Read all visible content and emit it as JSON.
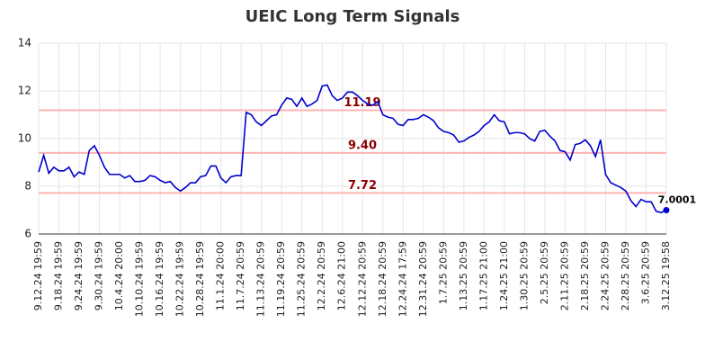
{
  "chart_data": {
    "type": "line",
    "title": "UEIC Long Term Signals",
    "categories": [
      "9.12.24 19:59",
      null,
      null,
      null,
      "9.18.24 19:59",
      null,
      null,
      null,
      "9.24.24 19:59",
      null,
      null,
      null,
      "9.30.24 19:59",
      null,
      null,
      null,
      "10.4.24 20:00",
      null,
      null,
      null,
      "10.10.24 19:59",
      null,
      null,
      null,
      "10.16.24 19:59",
      null,
      null,
      null,
      "10.22.24 19:59",
      null,
      null,
      null,
      "10.28.24 19:59",
      null,
      null,
      null,
      "11.1.24 20:00",
      null,
      null,
      null,
      "11.7.24 20:59",
      null,
      null,
      null,
      "11.13.24 20:59",
      null,
      null,
      null,
      "11.19.24 20:59",
      null,
      null,
      null,
      "11.25.24 20:59",
      null,
      null,
      null,
      "12.2.24 20:59",
      null,
      null,
      null,
      "12.6.24 21:00",
      null,
      null,
      null,
      "12.12.24 20:59",
      null,
      null,
      null,
      "12.18.24 20:59",
      null,
      null,
      null,
      "12.24.24 17:59",
      null,
      null,
      null,
      "12.31.24 20:59",
      null,
      null,
      null,
      "1.7.25 20:59",
      null,
      null,
      null,
      "1.13.25 20:59",
      null,
      null,
      null,
      "1.17.25 21:00",
      null,
      null,
      null,
      "1.24.25 21:00",
      null,
      null,
      null,
      "1.30.25 20:59",
      null,
      null,
      null,
      "2.5.25 20:59",
      null,
      null,
      null,
      "2.11.25 20:59",
      null,
      null,
      null,
      "2.18.25 20:59",
      null,
      null,
      null,
      "2.24.25 20:59",
      null,
      null,
      null,
      "2.28.25 20:59",
      null,
      null,
      null,
      "3.6.25 20:59",
      null,
      null,
      null,
      "3.12.25 19:58"
    ],
    "series": [
      {
        "color": "#0000cc",
        "values": [
          8.6,
          9.3,
          8.55,
          8.8,
          8.65,
          8.65,
          8.8,
          8.4,
          8.6,
          8.5,
          9.5,
          9.7,
          9.3,
          8.8,
          8.5,
          8.5,
          8.5,
          8.35,
          8.45,
          8.2,
          8.2,
          8.25,
          8.45,
          8.4,
          8.25,
          8.15,
          8.2,
          7.95,
          7.8,
          7.95,
          8.15,
          8.15,
          8.4,
          8.45,
          8.85,
          8.85,
          8.35,
          8.15,
          8.4,
          8.45,
          8.45,
          11.1,
          11.0,
          10.7,
          10.55,
          10.75,
          10.95,
          11.0,
          11.4,
          11.7,
          11.65,
          11.35,
          11.7,
          11.35,
          11.45,
          11.6,
          12.2,
          12.25,
          11.8,
          11.6,
          11.7,
          11.95,
          11.95,
          11.8,
          11.6,
          11.45,
          11.4,
          11.55,
          11.0,
          10.9,
          10.85,
          10.6,
          10.55,
          10.8,
          10.8,
          10.85,
          11.0,
          10.9,
          10.75,
          10.45,
          10.3,
          10.25,
          10.15,
          9.85,
          9.9,
          10.05,
          10.15,
          10.3,
          10.55,
          10.7,
          11.0,
          10.75,
          10.7,
          10.2,
          10.25,
          10.25,
          10.2,
          10.0,
          9.9,
          10.3,
          10.35,
          10.1,
          9.9,
          9.5,
          9.45,
          9.1,
          9.75,
          9.8,
          9.95,
          9.7,
          9.25,
          9.95,
          8.5,
          8.15,
          8.05,
          7.95,
          7.8,
          7.4,
          7.15,
          7.45,
          7.35,
          7.35,
          6.95,
          6.9,
          7.0001
        ]
      }
    ],
    "signals": [
      {
        "value": 11.19,
        "label": "11.19"
      },
      {
        "value": 9.4,
        "label": "9.40"
      },
      {
        "value": 7.72,
        "label": "7.72"
      }
    ],
    "signal_color": "#ffb3b3",
    "signal_label_color": "#8b0000",
    "ylim": [
      6,
      14
    ],
    "yticks": [
      6,
      8,
      10,
      12,
      14
    ],
    "grid": true
  }
}
